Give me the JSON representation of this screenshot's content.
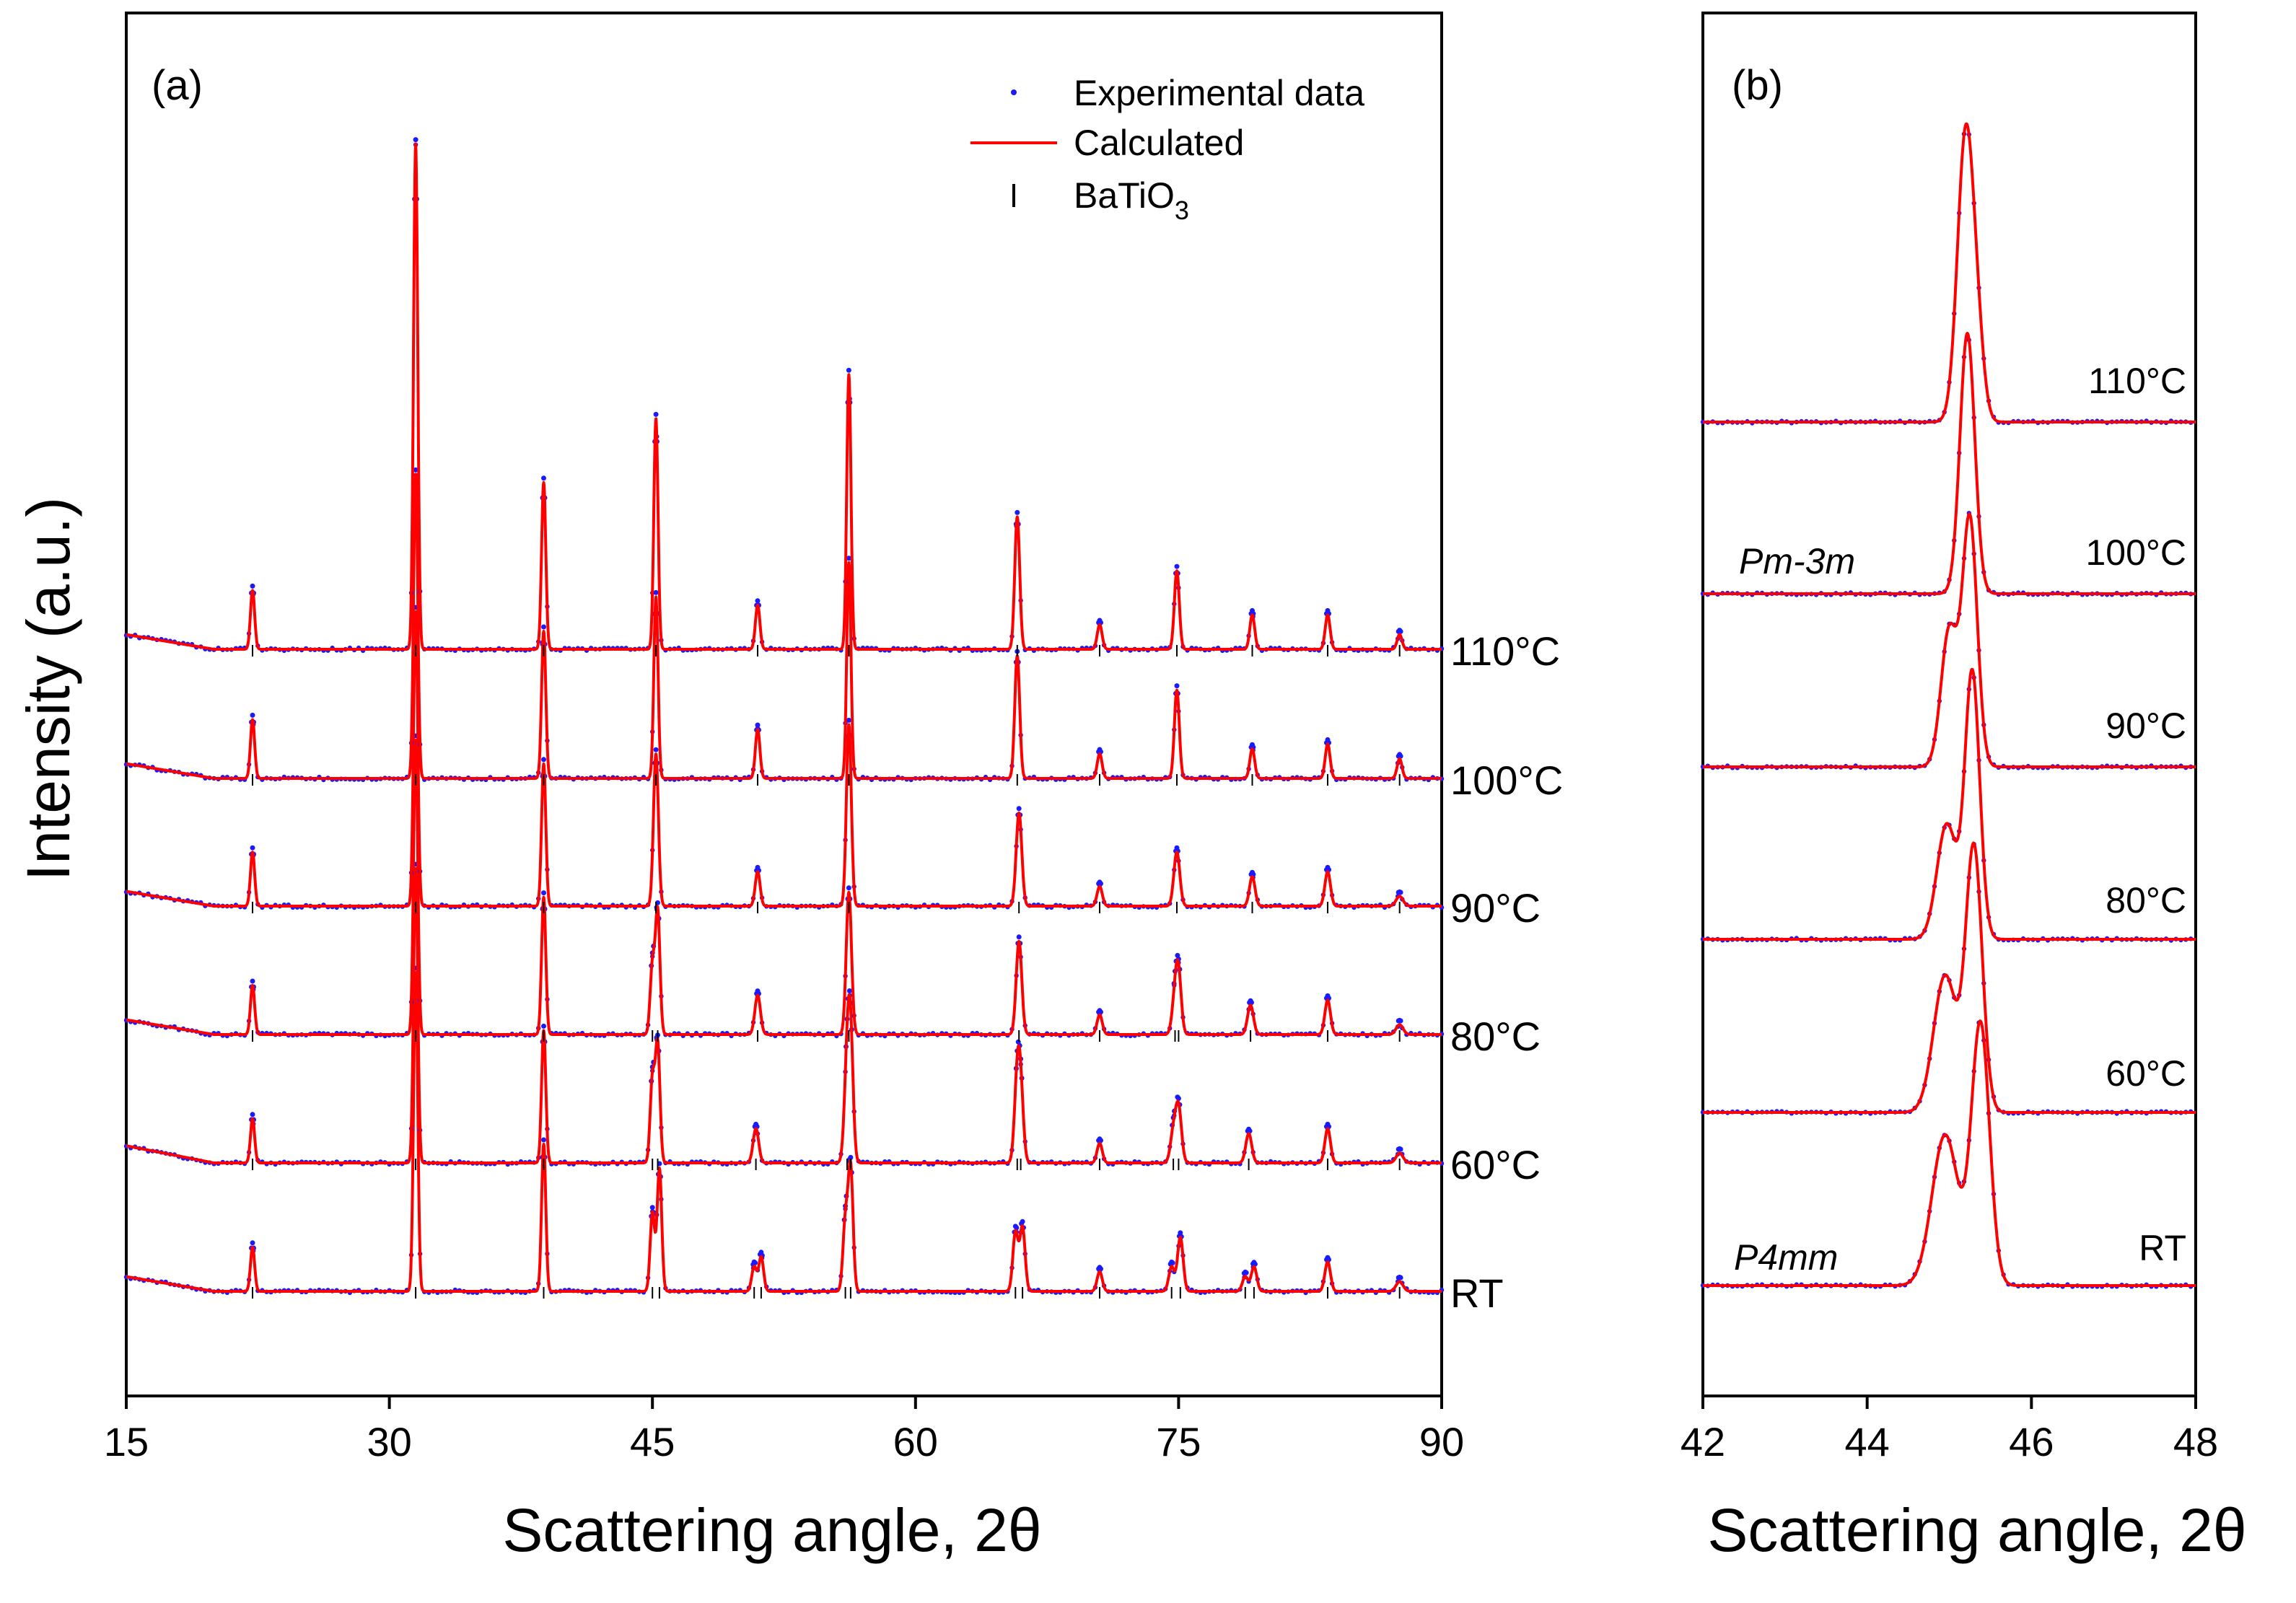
{
  "chart_data": [
    {
      "type": "line",
      "panel_label": "(a)",
      "xlabel": "Scattering angle, 2θ",
      "ylabel": "Intensity (a.u.)",
      "xlim": [
        15,
        90
      ],
      "x_ticks": [
        "15",
        "30",
        "45",
        "60",
        "75",
        "90"
      ],
      "x_tick_values": [
        15,
        30,
        45,
        60,
        75,
        90
      ],
      "grid": false,
      "legend_position": "top-right",
      "legend": [
        {
          "label": "Experimental data",
          "marker": "dot",
          "color": "#1a1aff"
        },
        {
          "label": "Calculated",
          "marker": "line",
          "color": "#ff0000"
        },
        {
          "label_main": "BaTiO",
          "label_sub": "3",
          "marker": "tick",
          "color": "#000000"
        }
      ],
      "series": [
        {
          "name": "RT",
          "baseline": 0,
          "background_start": 0.3,
          "peaks": [
            [
              22.2,
              0.9,
              0.12
            ],
            [
              31.5,
              6.5,
              0.12
            ],
            [
              38.8,
              3.0,
              0.12
            ],
            [
              45.0,
              1.6,
              0.13
            ],
            [
              45.4,
              2.5,
              0.13
            ],
            [
              50.8,
              0.5,
              0.14
            ],
            [
              51.2,
              0.7,
              0.14
            ],
            [
              56.0,
              1.4,
              0.14
            ],
            [
              56.3,
              2.5,
              0.14
            ],
            [
              65.7,
              1.2,
              0.15
            ],
            [
              66.1,
              1.3,
              0.15
            ],
            [
              70.5,
              0.4,
              0.15
            ],
            [
              74.6,
              0.5,
              0.16
            ],
            [
              75.1,
              1.1,
              0.16
            ],
            [
              78.8,
              0.3,
              0.16
            ],
            [
              79.3,
              0.5,
              0.16
            ],
            [
              83.5,
              0.6,
              0.16
            ],
            [
              87.6,
              0.2,
              0.2
            ]
          ]
        },
        {
          "name": "60°C",
          "baseline": 1,
          "background_start": 0.35,
          "peaks": [
            [
              22.2,
              0.9,
              0.12
            ],
            [
              31.5,
              6.0,
              0.12
            ],
            [
              38.8,
              2.7,
              0.12
            ],
            [
              45.0,
              1.7,
              0.13
            ],
            [
              45.3,
              2.4,
              0.13
            ],
            [
              50.9,
              0.7,
              0.16
            ],
            [
              56.1,
              1.9,
              0.16
            ],
            [
              56.3,
              2.3,
              0.15
            ],
            [
              65.8,
              1.6,
              0.16
            ],
            [
              66.0,
              1.3,
              0.16
            ],
            [
              70.5,
              0.4,
              0.15
            ],
            [
              74.7,
              0.6,
              0.17
            ],
            [
              75.0,
              1.1,
              0.17
            ],
            [
              79.0,
              0.6,
              0.17
            ],
            [
              83.5,
              0.7,
              0.16
            ],
            [
              87.6,
              0.2,
              0.2
            ]
          ]
        },
        {
          "name": "80°C",
          "baseline": 2,
          "background_start": 0.3,
          "peaks": [
            [
              22.2,
              1.0,
              0.12
            ],
            [
              31.5,
              6.0,
              0.12
            ],
            [
              38.8,
              2.8,
              0.12
            ],
            [
              45.0,
              1.4,
              0.13
            ],
            [
              45.3,
              2.5,
              0.13
            ],
            [
              51.0,
              0.8,
              0.16
            ],
            [
              56.2,
              2.9,
              0.15
            ],
            [
              65.9,
              1.9,
              0.16
            ],
            [
              70.5,
              0.4,
              0.15
            ],
            [
              74.8,
              0.7,
              0.17
            ],
            [
              75.0,
              1.1,
              0.16
            ],
            [
              79.1,
              0.6,
              0.17
            ],
            [
              83.5,
              0.7,
              0.16
            ],
            [
              87.6,
              0.2,
              0.2
            ]
          ]
        },
        {
          "name": "90°C",
          "baseline": 3,
          "background_start": 0.3,
          "peaks": [
            [
              22.2,
              1.1,
              0.12
            ],
            [
              31.5,
              6.0,
              0.12
            ],
            [
              38.8,
              2.9,
              0.12
            ],
            [
              45.2,
              3.1,
              0.14
            ],
            [
              51.0,
              0.7,
              0.14
            ],
            [
              56.2,
              3.7,
              0.14
            ],
            [
              65.9,
              1.9,
              0.16
            ],
            [
              70.5,
              0.4,
              0.15
            ],
            [
              74.9,
              1.1,
              0.17
            ],
            [
              79.2,
              0.6,
              0.16
            ],
            [
              83.5,
              0.7,
              0.16
            ],
            [
              87.6,
              0.2,
              0.2
            ]
          ]
        },
        {
          "name": "100°C",
          "baseline": 4,
          "background_start": 0.3,
          "peaks": [
            [
              22.2,
              1.2,
              0.12
            ],
            [
              31.5,
              6.2,
              0.12
            ],
            [
              38.8,
              3.0,
              0.12
            ],
            [
              45.2,
              3.7,
              0.12
            ],
            [
              51.0,
              1.0,
              0.13
            ],
            [
              56.2,
              4.4,
              0.12
            ],
            [
              65.8,
              2.5,
              0.14
            ],
            [
              70.5,
              0.5,
              0.14
            ],
            [
              74.9,
              1.8,
              0.14
            ],
            [
              79.2,
              0.6,
              0.14
            ],
            [
              83.5,
              0.7,
              0.14
            ],
            [
              87.6,
              0.4,
              0.14
            ]
          ]
        },
        {
          "name": "110°C",
          "baseline": 5,
          "background_start": 0.3,
          "peaks": [
            [
              22.2,
              1.2,
              0.12
            ],
            [
              31.5,
              10.3,
              0.12
            ],
            [
              38.8,
              3.4,
              0.12
            ],
            [
              45.2,
              4.7,
              0.12
            ],
            [
              51.0,
              0.9,
              0.13
            ],
            [
              56.2,
              5.6,
              0.12
            ],
            [
              65.8,
              2.7,
              0.14
            ],
            [
              70.5,
              0.5,
              0.14
            ],
            [
              74.9,
              1.6,
              0.14
            ],
            [
              79.2,
              0.7,
              0.14
            ],
            [
              83.5,
              0.7,
              0.14
            ],
            [
              87.6,
              0.3,
              0.14
            ]
          ]
        }
      ]
    },
    {
      "type": "line",
      "panel_label": "(b)",
      "xlabel": "Scattering angle, 2θ",
      "xlim": [
        42,
        48
      ],
      "x_ticks": [
        "42",
        "44",
        "46",
        "48"
      ],
      "x_tick_values": [
        42,
        44,
        46,
        48
      ],
      "grid": false,
      "phase_labels": [
        "Pm-3m",
        "P4mm"
      ],
      "series": [
        {
          "name": "RT",
          "baseline": 0,
          "peaks": [
            [
              44.95,
              0.55,
              0.16
            ],
            [
              45.38,
              0.95,
              0.11
            ]
          ]
        },
        {
          "name": "60°C",
          "baseline": 1,
          "peaks": [
            [
              44.95,
              0.5,
              0.14
            ],
            [
              45.3,
              0.96,
              0.1
            ]
          ]
        },
        {
          "name": "80°C",
          "baseline": 2,
          "peaks": [
            [
              44.97,
              0.42,
              0.12
            ],
            [
              45.28,
              0.97,
              0.09
            ]
          ]
        },
        {
          "name": "90°C",
          "baseline": 3,
          "peaks": [
            [
              45.0,
              0.5,
              0.1
            ],
            [
              45.25,
              0.9,
              0.09
            ]
          ]
        },
        {
          "name": "100°C",
          "baseline": 4,
          "peaks": [
            [
              45.22,
              0.95,
              0.09
            ]
          ]
        },
        {
          "name": "110°C",
          "baseline": 5,
          "peaks": [
            [
              45.2,
              1.05,
              0.1
            ],
            [
              45.35,
              0.2,
              0.08
            ]
          ]
        }
      ]
    }
  ]
}
